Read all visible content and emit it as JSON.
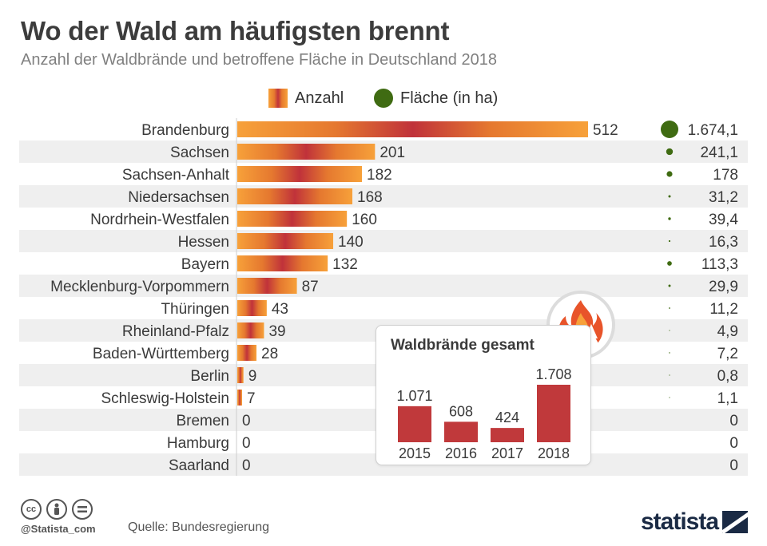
{
  "title": "Wo der Wald am häufigsten brennt",
  "subtitle": "Anzahl der Waldbrände und betroffene Fläche in Deutschland 2018",
  "legend": {
    "anzahl": "Anzahl",
    "flaeche": "Fläche (in ha)"
  },
  "colors": {
    "bar_light": "#f7a13a",
    "bar_dark": "#c0323a",
    "area_dot": "#3f6b12",
    "inset_bar": "#c0393b",
    "row_band": "#efefef"
  },
  "chart_data": [
    {
      "type": "bar",
      "orientation": "horizontal",
      "categories": [
        "Brandenburg",
        "Sachsen",
        "Sachsen-Anhalt",
        "Niedersachsen",
        "Nordrhein-Westfalen",
        "Hessen",
        "Bayern",
        "Mecklenburg-Vorpommern",
        "Thüringen",
        "Rheinland-Pfalz",
        "Baden-Württemberg",
        "Berlin",
        "Schleswig-Holstein",
        "Bremen",
        "Hamburg",
        "Saarland"
      ],
      "series": [
        {
          "name": "Anzahl",
          "values": [
            512,
            201,
            182,
            168,
            160,
            140,
            132,
            87,
            43,
            39,
            28,
            9,
            7,
            0,
            0,
            0
          ],
          "labels": [
            "512",
            "201",
            "182",
            "168",
            "160",
            "140",
            "132",
            "87",
            "43",
            "39",
            "28",
            "9",
            "7",
            "0",
            "0",
            "0"
          ]
        },
        {
          "name": "Fläche (in ha)",
          "values": [
            1674.1,
            241.1,
            178,
            31.2,
            39.4,
            16.3,
            113.3,
            29.9,
            11.2,
            4.9,
            7.2,
            0.8,
            1.1,
            0,
            0,
            0
          ],
          "labels": [
            "1.674,1",
            "241,1",
            "178",
            "31,2",
            "39,4",
            "16,3",
            "113,3",
            "29,9",
            "11,2",
            "4,9",
            "7,2",
            "0,8",
            "1,1",
            "0",
            "0",
            "0"
          ]
        }
      ]
    },
    {
      "type": "bar",
      "title": "Waldbrände gesamt",
      "categories": [
        "2015",
        "2016",
        "2017",
        "2018"
      ],
      "values": [
        1071,
        608,
        424,
        1708
      ],
      "labels": [
        "1.071",
        "608",
        "424",
        "1.708"
      ]
    }
  ],
  "footer": {
    "cc_icons": [
      "cc-icon",
      "by-icon",
      "nd-icon"
    ],
    "handle": "@Statista_com",
    "source": "Quelle: Bundesregierung",
    "brand": "statista"
  }
}
